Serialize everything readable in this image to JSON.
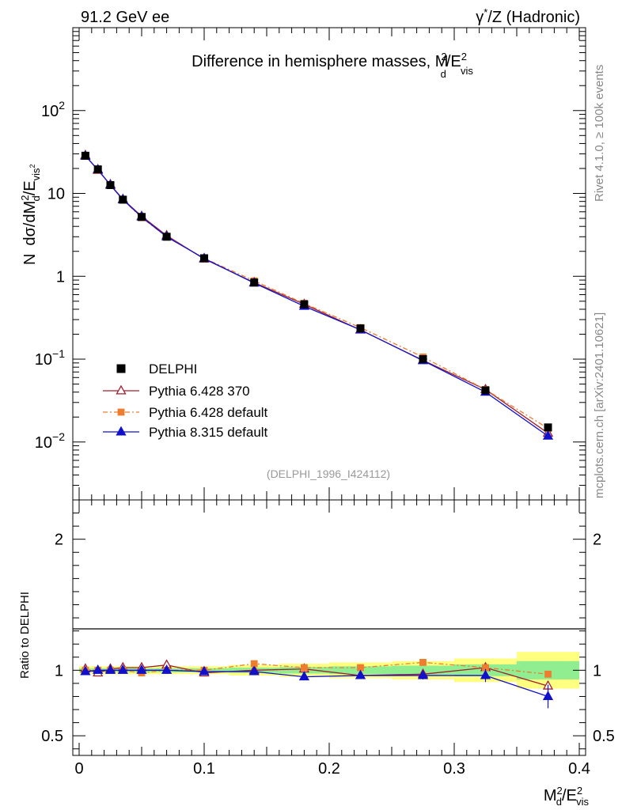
{
  "header": {
    "left": "91.2 GeV ee",
    "right_prefix": "γ",
    "right_sup": "*",
    "right_suffix": "/Z (Hadronic)"
  },
  "side_labels": {
    "rivet": "Rivet 4.1.0, ≥ 100k events",
    "mcplots": "mcplots.cern.ch [arXiv:2401.10621]"
  },
  "chart_data": [
    {
      "type": "line",
      "yscale": "log",
      "title": "Difference in hemisphere masses, M",
      "title_sub": "d",
      "title_sup": "2",
      "title_tail": "/E",
      "title_tail_sup": "2",
      "title_tail_sub": "vis",
      "ylabel": "N dσ/dM²d/E_vis²",
      "ylabel_parts": {
        "n": "N",
        "main": "dσ/dM",
        "sup": "2",
        "sub": "d",
        "e": "/E",
        "esub": "vis",
        "esubsup": "2"
      },
      "watermark": "(DELPHI_1996_I424112)",
      "xlim": [
        0,
        0.4
      ],
      "ylim": [
        0.002,
        1000
      ],
      "ytick_labels": [
        {
          "value": 0.01,
          "base": "10",
          "exp": "−2"
        },
        {
          "value": 0.1,
          "base": "10",
          "exp": "−1"
        },
        {
          "value": 1,
          "base": "1",
          "exp": ""
        },
        {
          "value": 10,
          "base": "10",
          "exp": ""
        },
        {
          "value": 100,
          "base": "10",
          "exp": "2"
        }
      ],
      "x": [
        0.005,
        0.015,
        0.025,
        0.035,
        0.05,
        0.07,
        0.1,
        0.14,
        0.18,
        0.225,
        0.275,
        0.325,
        0.375
      ],
      "series": [
        {
          "name": "DELPHI",
          "color": "#000000",
          "marker": "square",
          "values": [
            28.5,
            19.5,
            12.6,
            8.4,
            5.2,
            3.0,
            1.65,
            0.84,
            0.46,
            0.235,
            0.1,
            0.042,
            0.015
          ]
        },
        {
          "name": "Pythia 6.428 370",
          "color": "#a01e2d",
          "marker": "open-triangle",
          "values": [
            28.8,
            19.0,
            12.8,
            8.5,
            5.3,
            3.1,
            1.62,
            0.84,
            0.46,
            0.225,
            0.097,
            0.043,
            0.0128
          ]
        },
        {
          "name": "Pythia 6.428 default",
          "color": "#ee7d30",
          "marker": "filled-square",
          "dashed": true,
          "values": [
            28.6,
            19.2,
            12.7,
            8.4,
            5.1,
            3.0,
            1.65,
            0.88,
            0.47,
            0.24,
            0.106,
            0.043,
            0.0146
          ]
        },
        {
          "name": "Pythia 8.315 default",
          "color": "#1111cc",
          "marker": "filled-triangle",
          "values": [
            28.2,
            19.4,
            12.6,
            8.4,
            5.2,
            3.0,
            1.64,
            0.83,
            0.435,
            0.226,
            0.096,
            0.04,
            0.0118
          ]
        }
      ]
    },
    {
      "type": "line",
      "ylabel": "Ratio to DELPHI",
      "xlabel_parts": {
        "main": "M",
        "sup": "2",
        "sub": "d",
        "e": "/E",
        "esup": "2",
        "esub": "vis"
      },
      "xlim": [
        0,
        0.4
      ],
      "ylim": [
        0.35,
        2.3
      ],
      "xtick_labels": [
        "0",
        "0.1",
        "0.2",
        "0.3",
        "0.4"
      ],
      "ytick_labels": [
        "0.5",
        "1",
        "2"
      ],
      "x": [
        0.005,
        0.015,
        0.025,
        0.035,
        0.05,
        0.07,
        0.1,
        0.14,
        0.18,
        0.225,
        0.275,
        0.325,
        0.375
      ],
      "bin_edges": [
        0,
        0.01,
        0.02,
        0.03,
        0.04,
        0.06,
        0.08,
        0.12,
        0.16,
        0.2,
        0.25,
        0.3,
        0.35,
        0.4
      ],
      "band_yellow": [
        0.03,
        0.03,
        0.03,
        0.03,
        0.03,
        0.03,
        0.03,
        0.04,
        0.05,
        0.06,
        0.07,
        0.09,
        0.14
      ],
      "band_green": [
        0.015,
        0.015,
        0.015,
        0.015,
        0.015,
        0.015,
        0.015,
        0.02,
        0.025,
        0.03,
        0.035,
        0.045,
        0.07
      ],
      "series": [
        {
          "name": "Pythia 6.428 370",
          "color": "#a01e2d",
          "marker": "open-triangle",
          "values": [
            1.01,
            0.98,
            1.01,
            1.02,
            1.02,
            1.04,
            0.98,
            1.0,
            1.01,
            0.96,
            0.97,
            1.02,
            0.88
          ]
        },
        {
          "name": "Pythia 6.428 default",
          "color": "#ee7d30",
          "marker": "filled-square",
          "dashed": true,
          "values": [
            1.0,
            1.0,
            1.0,
            1.0,
            0.98,
            1.0,
            1.0,
            1.05,
            1.02,
            1.02,
            1.06,
            1.02,
            0.97
          ]
        },
        {
          "name": "Pythia 8.315 default",
          "color": "#1111cc",
          "marker": "filled-triangle",
          "values": [
            0.99,
            1.0,
            1.0,
            1.0,
            1.0,
            1.0,
            0.99,
            0.99,
            0.95,
            0.96,
            0.96,
            0.96,
            0.8
          ],
          "errors": [
            0,
            0,
            0,
            0,
            0,
            0,
            0,
            0.01,
            0.015,
            0.02,
            0.03,
            0.05,
            0.09
          ]
        }
      ]
    }
  ]
}
